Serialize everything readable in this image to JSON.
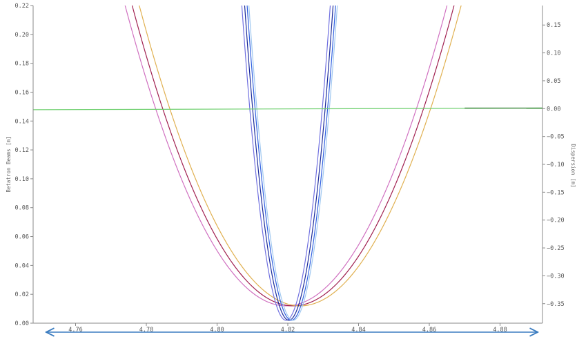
{
  "chart_data": {
    "type": "line",
    "title": "",
    "xlabel": "",
    "ylabel_left": "Betatron Beams [m]",
    "ylabel_right": "Dispersion [m]",
    "xlim": [
      4.748,
      4.892
    ],
    "ylim_left": [
      0,
      0.22
    ],
    "ylim_right": [
      -0.385,
      0.185
    ],
    "x_ticks": [
      "4.76",
      "4.78",
      "4.80",
      "4.82",
      "4.84",
      "4.86",
      "4.88"
    ],
    "y_left_ticks": [
      "0.00",
      "0.02",
      "0.04",
      "0.06",
      "0.08",
      "0.10",
      "0.12",
      "0.14",
      "0.16",
      "0.18",
      "0.20",
      "0.22"
    ],
    "y_right_ticks": [
      "-0.35",
      "-0.30",
      "-0.25",
      "-0.20",
      "-0.15",
      "-0.10",
      "-0.05",
      "0.00",
      "0.05",
      "0.10",
      "0.15"
    ],
    "grid": false,
    "legend": "none",
    "annotation": "double-headed arrow spanning the horizontal axis",
    "series": [
      {
        "color": "#d070c0",
        "axis": "left",
        "form": "parabola",
        "vertex_x": 4.8195,
        "vertex_y": 0.012,
        "half_width_at_0.22": 0.0455
      },
      {
        "color": "#a02050",
        "axis": "left",
        "form": "parabola",
        "vertex_x": 4.8215,
        "vertex_y": 0.012,
        "half_width_at_0.22": 0.0455
      },
      {
        "color": "#e0b050",
        "axis": "left",
        "form": "parabola",
        "vertex_x": 4.8235,
        "vertex_y": 0.012,
        "half_width_at_0.22": 0.0455
      },
      {
        "color": "#7070e0",
        "axis": "left",
        "form": "parabola",
        "vertex_x": 4.8195,
        "vertex_y": 0.002,
        "half_width_at_0.22": 0.0125
      },
      {
        "color": "#1a2a9a",
        "axis": "left",
        "form": "parabola",
        "vertex_x": 4.8203,
        "vertex_y": 0.002,
        "half_width_at_0.22": 0.0125
      },
      {
        "color": "#3060e0",
        "axis": "left",
        "form": "parabola",
        "vertex_x": 4.821,
        "vertex_y": 0.002,
        "half_width_at_0.22": 0.0125
      },
      {
        "color": "#a0c8f0",
        "axis": "left",
        "form": "parabola",
        "vertex_x": 4.8215,
        "vertex_y": 0.002,
        "half_width_at_0.22": 0.0125
      },
      {
        "color": "#70d070",
        "axis": "right",
        "form": "line",
        "x": [
          4.748,
          4.892
        ],
        "y": [
          -0.002,
          0.001
        ]
      },
      {
        "color": "#2a7a2a",
        "axis": "right",
        "form": "line",
        "x": [
          4.87,
          4.892
        ],
        "y": [
          0.001,
          0.001
        ]
      }
    ]
  }
}
